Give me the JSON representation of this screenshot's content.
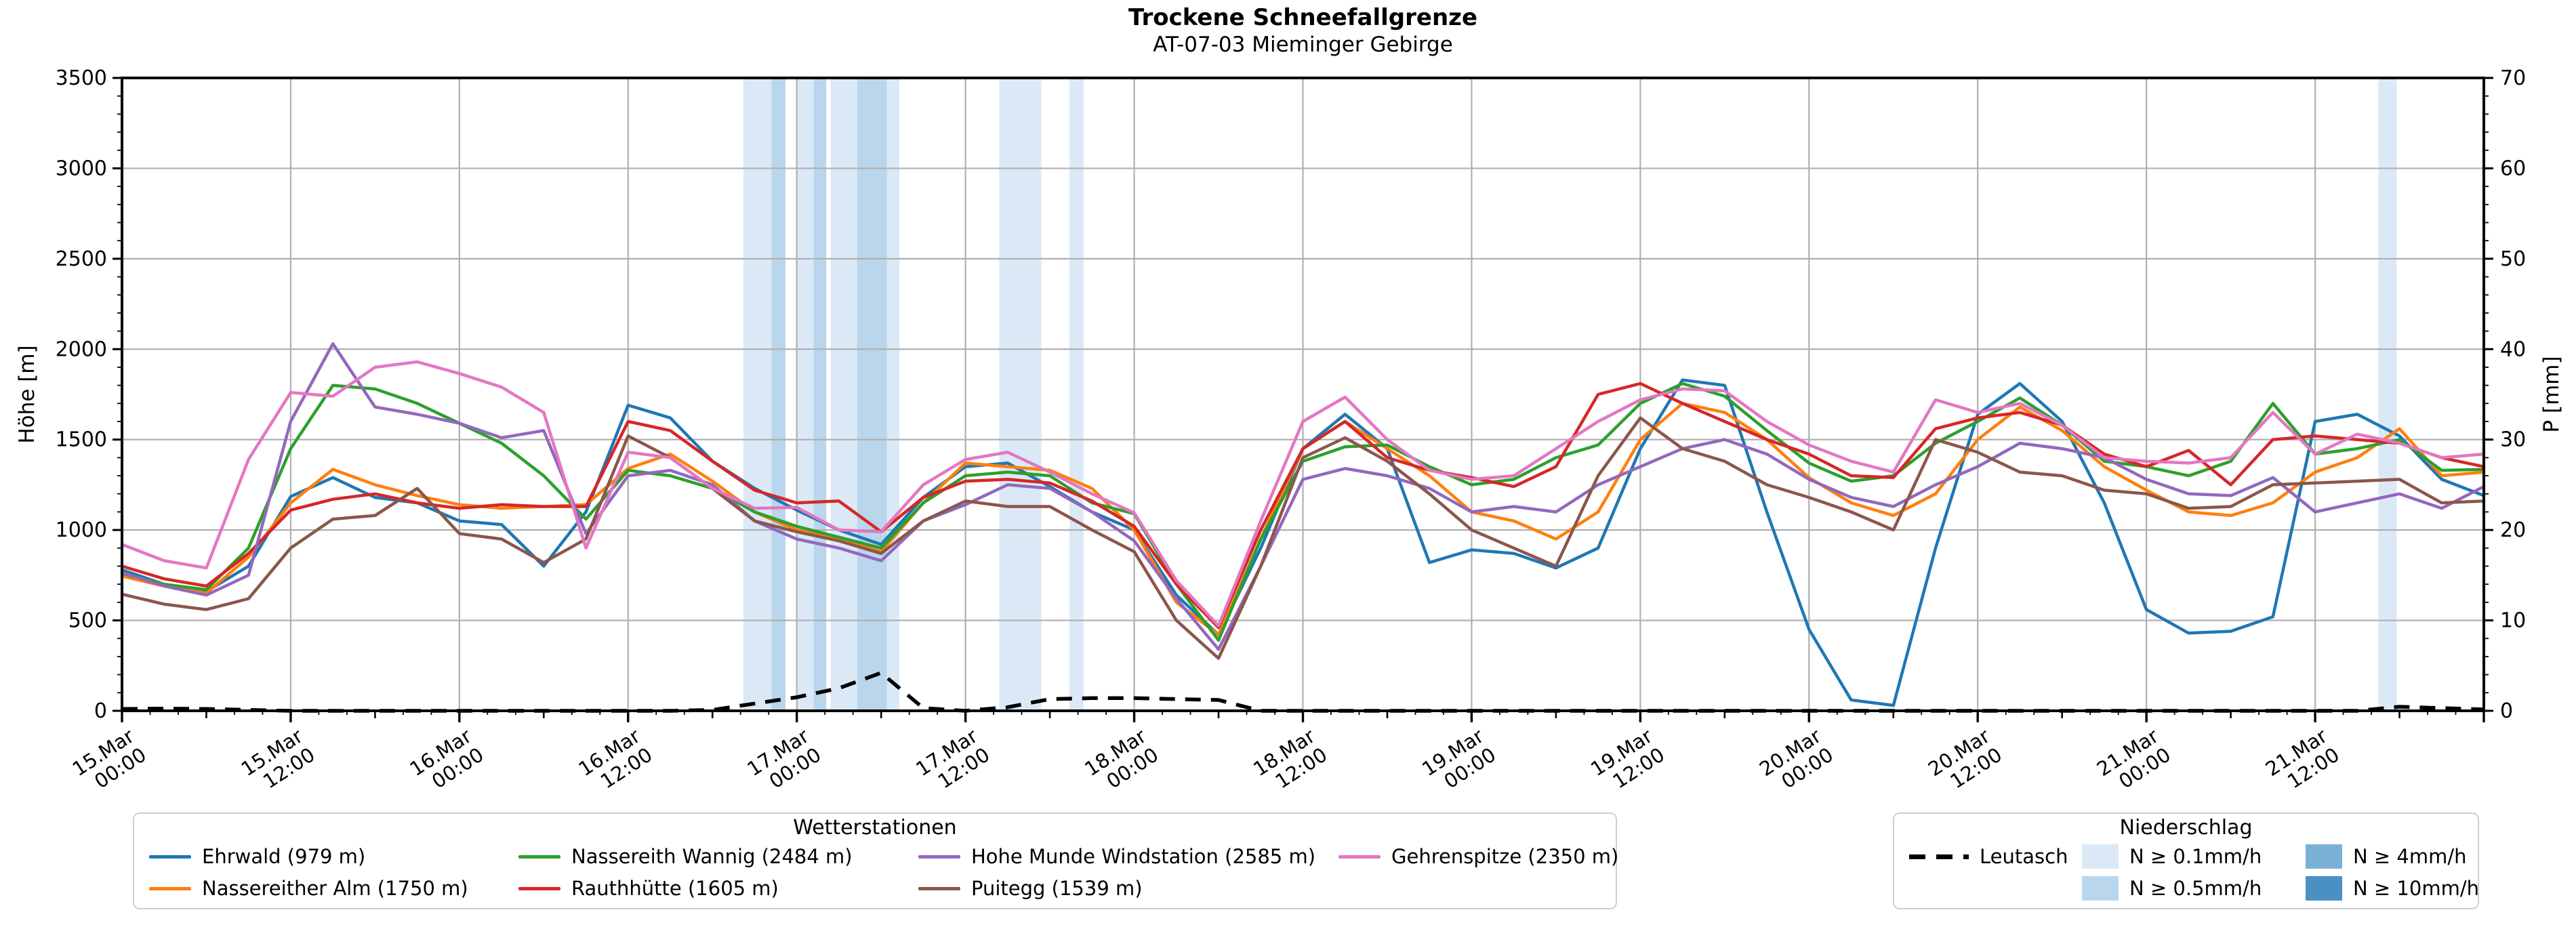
{
  "title": "Trockene Schneefallgrenze",
  "subtitle": "AT-07-03 Mieminger Gebirge",
  "chart_data": {
    "type": "line",
    "title": "Trockene Schneefallgrenze",
    "subtitle": "AT-07-03 Mieminger Gebirge",
    "ylabel_left": "Höhe [m]",
    "ylabel_right": "P [mm]",
    "ylim_left": [
      0,
      3500
    ],
    "ylim_right": [
      0,
      70
    ],
    "x_range_hours": [
      0,
      168
    ],
    "grid": true,
    "y_ticks_left": [
      0,
      500,
      1000,
      1500,
      2000,
      2500,
      3000,
      3500
    ],
    "y_ticks_right": [
      0,
      10,
      20,
      30,
      40,
      50,
      60,
      70
    ],
    "x_ticks": [
      {
        "hour": 0,
        "date": "15.Mar",
        "time": "00:00"
      },
      {
        "hour": 12,
        "date": "15.Mar",
        "time": "12:00"
      },
      {
        "hour": 24,
        "date": "16.Mar",
        "time": "00:00"
      },
      {
        "hour": 36,
        "date": "16.Mar",
        "time": "12:00"
      },
      {
        "hour": 48,
        "date": "17.Mar",
        "time": "00:00"
      },
      {
        "hour": 60,
        "date": "17.Mar",
        "time": "12:00"
      },
      {
        "hour": 72,
        "date": "18.Mar",
        "time": "00:00"
      },
      {
        "hour": 84,
        "date": "18.Mar",
        "time": "12:00"
      },
      {
        "hour": 96,
        "date": "19.Mar",
        "time": "00:00"
      },
      {
        "hour": 108,
        "date": "19.Mar",
        "time": "12:00"
      },
      {
        "hour": 120,
        "date": "20.Mar",
        "time": "00:00"
      },
      {
        "hour": 132,
        "date": "20.Mar",
        "time": "12:00"
      },
      {
        "hour": 144,
        "date": "21.Mar",
        "time": "00:00"
      },
      {
        "hour": 156,
        "date": "21.Mar",
        "time": "12:00"
      }
    ],
    "hours": [
      0,
      3,
      6,
      9,
      12,
      15,
      18,
      21,
      24,
      27,
      30,
      33,
      36,
      39,
      42,
      45,
      48,
      51,
      54,
      57,
      60,
      63,
      66,
      69,
      72,
      75,
      78,
      81,
      84,
      87,
      90,
      93,
      96,
      99,
      102,
      105,
      108,
      111,
      114,
      117,
      120,
      123,
      126,
      129,
      132,
      135,
      138,
      141,
      144,
      147,
      150,
      153,
      156,
      159,
      162,
      165,
      168
    ],
    "series": [
      {
        "name": "Ehrwald (979 m)",
        "color": "#1f77b4",
        "values": [
          780,
          700,
          660,
          800,
          1185,
          1290,
          1180,
          1150,
          1050,
          1030,
          800,
          1100,
          1690,
          1620,
          1380,
          1230,
          1110,
          1000,
          920,
          1180,
          1350,
          1370,
          1240,
          1100,
          1000,
          640,
          420,
          900,
          1450,
          1640,
          1450,
          820,
          890,
          870,
          790,
          900,
          1450,
          1830,
          1800,
          1100,
          450,
          60,
          30,
          900,
          1640,
          1810,
          1600,
          1150,
          560,
          430,
          440,
          520,
          1600,
          1640,
          1520,
          1280,
          1190
        ]
      },
      {
        "name": "Nassereither Alm (1750 m)",
        "color": "#ff7f0e",
        "values": [
          745,
          690,
          650,
          850,
          1150,
          1335,
          1250,
          1190,
          1140,
          1120,
          1130,
          1140,
          1340,
          1420,
          1270,
          1100,
          1000,
          950,
          880,
          1150,
          1370,
          1350,
          1330,
          1230,
          1000,
          600,
          420,
          950,
          1450,
          1600,
          1450,
          1300,
          1100,
          1050,
          950,
          1100,
          1500,
          1700,
          1650,
          1500,
          1290,
          1150,
          1080,
          1200,
          1500,
          1680,
          1550,
          1350,
          1220,
          1100,
          1080,
          1150,
          1320,
          1400,
          1560,
          1300,
          1320
        ]
      },
      {
        "name": "Nassereith Wannig (2484 m)",
        "color": "#2ca02c",
        "values": [
          760,
          700,
          670,
          900,
          1450,
          1800,
          1780,
          1700,
          1590,
          1480,
          1300,
          1060,
          1330,
          1300,
          1230,
          1100,
          1020,
          960,
          900,
          1150,
          1300,
          1320,
          1300,
          1150,
          1090,
          700,
          390,
          950,
          1380,
          1460,
          1470,
          1350,
          1250,
          1280,
          1400,
          1470,
          1700,
          1810,
          1740,
          1550,
          1370,
          1270,
          1300,
          1480,
          1600,
          1730,
          1580,
          1380,
          1350,
          1300,
          1380,
          1700,
          1420,
          1450,
          1500,
          1330,
          1335
        ]
      },
      {
        "name": "Rauthhütte (1605 m)",
        "color": "#d62728",
        "values": [
          800,
          730,
          690,
          870,
          1110,
          1170,
          1200,
          1150,
          1120,
          1140,
          1130,
          1130,
          1600,
          1550,
          1380,
          1220,
          1150,
          1160,
          990,
          1180,
          1270,
          1280,
          1260,
          1160,
          1020,
          700,
          460,
          1000,
          1450,
          1600,
          1400,
          1330,
          1290,
          1240,
          1350,
          1750,
          1810,
          1700,
          1600,
          1500,
          1420,
          1300,
          1290,
          1560,
          1620,
          1650,
          1580,
          1420,
          1350,
          1440,
          1250,
          1500,
          1520,
          1500,
          1480,
          1400,
          1350
        ]
      },
      {
        "name": "Hohe Munde Windstation (2585 m)",
        "color": "#9467bd",
        "values": [
          765,
          690,
          640,
          750,
          1600,
          2030,
          1680,
          1640,
          1590,
          1510,
          1550,
          980,
          1300,
          1330,
          1250,
          1050,
          950,
          900,
          830,
          1050,
          1140,
          1250,
          1230,
          1100,
          940,
          620,
          340,
          800,
          1280,
          1340,
          1300,
          1230,
          1100,
          1130,
          1100,
          1250,
          1350,
          1450,
          1500,
          1420,
          1280,
          1180,
          1130,
          1250,
          1350,
          1480,
          1450,
          1400,
          1280,
          1200,
          1190,
          1290,
          1100,
          1150,
          1200,
          1120,
          1240
        ]
      },
      {
        "name": "Puitegg (1539 m)",
        "color": "#8c564b",
        "values": [
          645,
          590,
          560,
          620,
          900,
          1060,
          1080,
          1230,
          980,
          950,
          820,
          950,
          1520,
          1400,
          1230,
          1050,
          990,
          940,
          870,
          1050,
          1160,
          1130,
          1130,
          1000,
          880,
          500,
          290,
          800,
          1400,
          1510,
          1380,
          1200,
          1000,
          900,
          800,
          1300,
          1620,
          1450,
          1380,
          1250,
          1180,
          1100,
          1000,
          1500,
          1430,
          1320,
          1300,
          1220,
          1200,
          1120,
          1130,
          1250,
          1260,
          1270,
          1280,
          1150,
          1160
        ]
      },
      {
        "name": "Gehrenspitze (2350 m)",
        "color": "#e377c2",
        "values": [
          920,
          830,
          790,
          1390,
          1760,
          1740,
          1900,
          1930,
          1865,
          1790,
          1650,
          900,
          1430,
          1400,
          1230,
          1120,
          1125,
          1000,
          990,
          1250,
          1390,
          1430,
          1320,
          1200,
          1095,
          720,
          470,
          1050,
          1600,
          1735,
          1500,
          1330,
          1280,
          1300,
          1450,
          1600,
          1720,
          1780,
          1770,
          1600,
          1470,
          1380,
          1320,
          1720,
          1650,
          1700,
          1580,
          1400,
          1380,
          1370,
          1400,
          1650,
          1420,
          1530,
          1480,
          1400,
          1420
        ]
      }
    ],
    "leutasch": {
      "name": "Leutasch",
      "color": "#000000",
      "axis": "right",
      "style": "dashed",
      "values": [
        0.2,
        0.25,
        0.2,
        0.1,
        0,
        0,
        0,
        0,
        0,
        0,
        0,
        0,
        0,
        0,
        0.1,
        0.8,
        1.5,
        2.5,
        4.2,
        0.3,
        0,
        0.4,
        1.3,
        1.4,
        1.4,
        1.3,
        1.2,
        0,
        0,
        0,
        0,
        0,
        0,
        0,
        0,
        0,
        0,
        0,
        0,
        0,
        0,
        0,
        0,
        0,
        0,
        0,
        0,
        0,
        0,
        0,
        0,
        0,
        0,
        0,
        0.45,
        0.3,
        0.15
      ]
    },
    "band_colors": {
      "0.1": "#dbe9f6",
      "0.5": "#b9d6ec",
      "4": "#7ab0d6",
      "10": "#4a90c2"
    },
    "precip_bands": [
      {
        "from_hour": 44.2,
        "to_hour": 46.2,
        "class": "0.1"
      },
      {
        "from_hour": 46.2,
        "to_hour": 47.2,
        "class": "0.5"
      },
      {
        "from_hour": 48.0,
        "to_hour": 49.2,
        "class": "0.1"
      },
      {
        "from_hour": 49.2,
        "to_hour": 50.1,
        "class": "0.5"
      },
      {
        "from_hour": 50.4,
        "to_hour": 52.3,
        "class": "0.1"
      },
      {
        "from_hour": 52.3,
        "to_hour": 54.4,
        "class": "0.5"
      },
      {
        "from_hour": 54.4,
        "to_hour": 55.3,
        "class": "0.1"
      },
      {
        "from_hour": 62.4,
        "to_hour": 65.4,
        "class": "0.1"
      },
      {
        "from_hour": 67.4,
        "to_hour": 68.4,
        "class": "0.1"
      },
      {
        "from_hour": 160.5,
        "to_hour": 161.8,
        "class": "0.1"
      }
    ],
    "legend_position": "bottom"
  },
  "legends": {
    "stations": {
      "title": "Wetterstationen"
    },
    "precip": {
      "title": "Niederschlag",
      "leutasch_label": "Leutasch",
      "classes": [
        {
          "label": "N ≥ 0.1mm/h",
          "color": "#dbe9f6"
        },
        {
          "label": "N ≥ 0.5mm/h",
          "color": "#b9d6ec"
        },
        {
          "label": "N ≥ 4mm/h",
          "color": "#7ab0d6"
        },
        {
          "label": "N ≥ 10mm/h",
          "color": "#4a90c2"
        }
      ]
    }
  }
}
